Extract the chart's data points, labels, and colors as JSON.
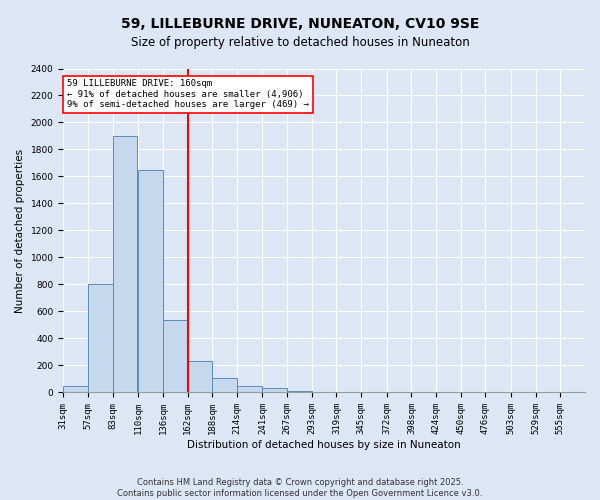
{
  "title": "59, LILLEBURNE DRIVE, NUNEATON, CV10 9SE",
  "subtitle": "Size of property relative to detached houses in Nuneaton",
  "xlabel": "Distribution of detached houses by size in Nuneaton",
  "ylabel": "Number of detached properties",
  "bin_labels": [
    "31sqm",
    "57sqm",
    "83sqm",
    "110sqm",
    "136sqm",
    "162sqm",
    "188sqm",
    "214sqm",
    "241sqm",
    "267sqm",
    "293sqm",
    "319sqm",
    "345sqm",
    "372sqm",
    "398sqm",
    "424sqm",
    "450sqm",
    "476sqm",
    "503sqm",
    "529sqm",
    "555sqm"
  ],
  "bin_edges": [
    31,
    57,
    83,
    110,
    136,
    162,
    188,
    214,
    241,
    267,
    293,
    319,
    345,
    372,
    398,
    424,
    450,
    476,
    503,
    529,
    555
  ],
  "bin_width": 26,
  "bar_heights": [
    50,
    800,
    1900,
    1650,
    540,
    230,
    110,
    50,
    30,
    10,
    5,
    2,
    1,
    0,
    0,
    0,
    0,
    0,
    0,
    0
  ],
  "bar_color": "#c5d8ee",
  "bar_edge_color": "#5b8db8",
  "property_size": 162,
  "property_line_color": "red",
  "ylim": [
    0,
    2400
  ],
  "yticks": [
    0,
    200,
    400,
    600,
    800,
    1000,
    1200,
    1400,
    1600,
    1800,
    2000,
    2200,
    2400
  ],
  "annotation_text": "59 LILLEBURNE DRIVE: 160sqm\n← 91% of detached houses are smaller (4,906)\n9% of semi-detached houses are larger (469) →",
  "annotation_box_color": "white",
  "annotation_box_edge_color": "red",
  "footer1": "Contains HM Land Registry data © Crown copyright and database right 2025.",
  "footer2": "Contains public sector information licensed under the Open Government Licence v3.0.",
  "background_color": "#dce6f5",
  "plot_bg_color": "#dce6f5",
  "grid_color": "white",
  "title_fontsize": 10,
  "subtitle_fontsize": 8.5,
  "axis_label_fontsize": 7.5,
  "tick_fontsize": 6.5,
  "annotation_fontsize": 6.5,
  "footer_fontsize": 6
}
